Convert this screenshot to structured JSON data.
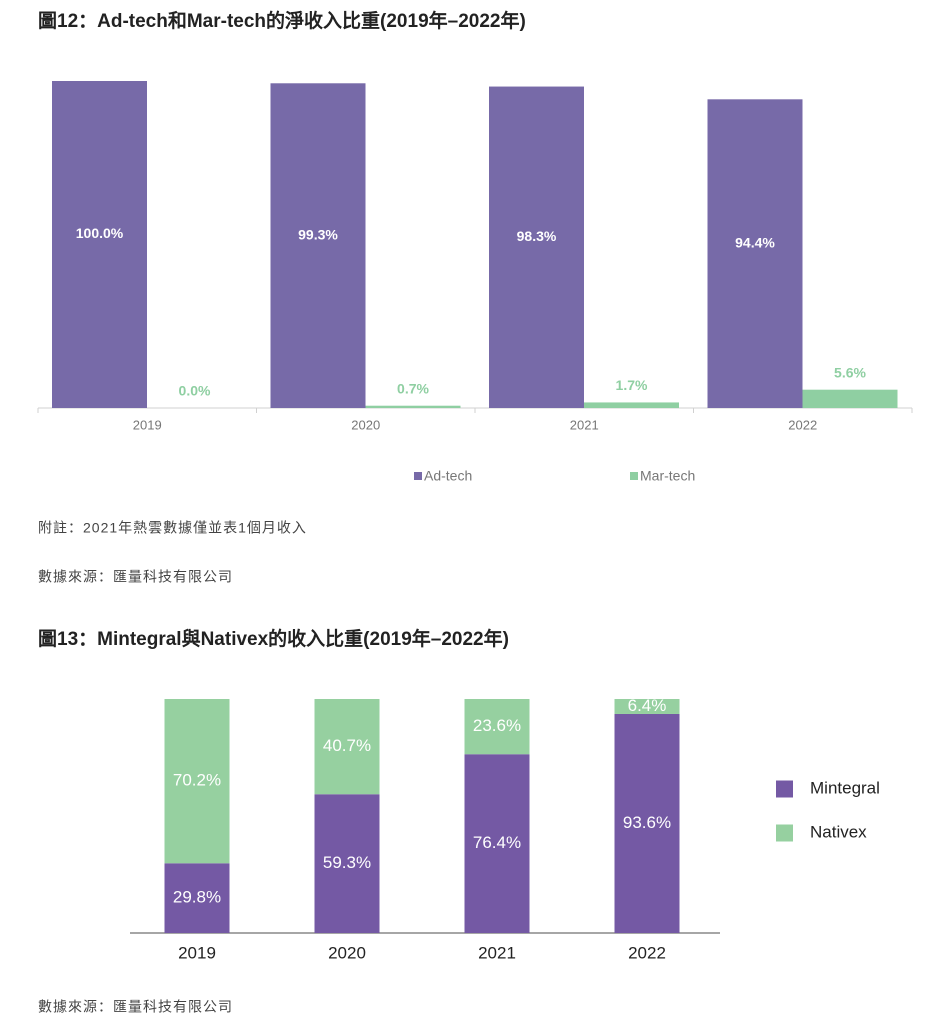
{
  "chart_data": [
    {
      "type": "bar",
      "title": "圖12：Ad-tech和Mar-tech的淨收入比重(2019年–2022年)",
      "categories": [
        "2019",
        "2020",
        "2021",
        "2022"
      ],
      "series": [
        {
          "name": "Ad-tech",
          "color": "#776aa8",
          "values": [
            100.0,
            99.3,
            98.3,
            94.4
          ],
          "value_labels": [
            "100.0%",
            "99.3%",
            "98.3%",
            "94.4%"
          ]
        },
        {
          "name": "Mar-tech",
          "color": "#8fcfa2",
          "values": [
            0.0,
            0.7,
            1.7,
            5.6
          ],
          "value_labels": [
            "0.0%",
            "0.7%",
            "1.7%",
            "5.6%"
          ]
        }
      ],
      "note": "附註：2021年熱雲數據僅並表1個月收入",
      "source": "數據來源：匯量科技有限公司"
    },
    {
      "type": "stacked_bar",
      "title": "圖13：Mintegral與Nativex的收入比重(2019年–2022年)",
      "categories": [
        "2019",
        "2020",
        "2021",
        "2022"
      ],
      "series": [
        {
          "name": "Mintegral",
          "color": "#7459a4",
          "values": [
            29.8,
            59.3,
            76.4,
            93.6
          ],
          "value_labels": [
            "29.8%",
            "59.3%",
            "76.4%",
            "93.6%"
          ]
        },
        {
          "name": "Nativex",
          "color": "#96d0a0",
          "values": [
            70.2,
            40.7,
            23.6,
            6.4
          ],
          "value_labels": [
            "70.2%",
            "40.7%",
            "23.6%",
            "6.4%"
          ]
        }
      ],
      "source": "數據來源：匯量科技有限公司"
    }
  ]
}
